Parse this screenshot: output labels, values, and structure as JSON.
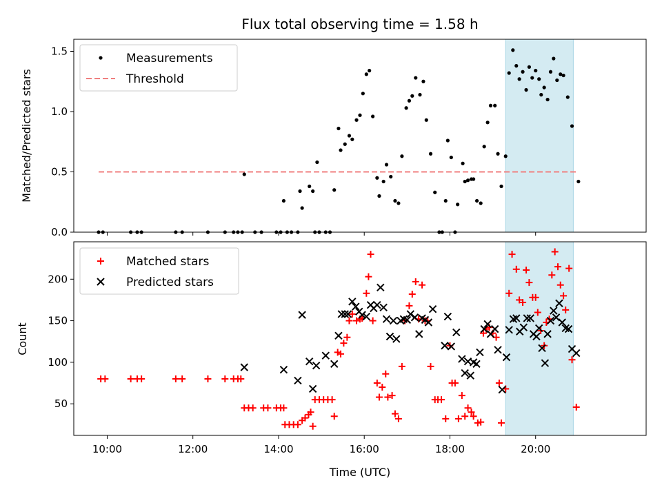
{
  "chart_data": {
    "type": "scatter",
    "title": "Flux total observing time = 1.58 h",
    "xlabel": "Time (UTC)",
    "x_ticks": [
      "10:00",
      "12:00",
      "14:00",
      "16:00",
      "18:00",
      "20:00"
    ],
    "x_tick_hours": [
      10,
      12,
      14,
      16,
      18,
      20
    ],
    "xlim_hours": [
      9.22,
      22.58
    ],
    "highlight_span_hours": [
      19.3,
      20.88
    ],
    "highlight_color": "#d4ebf2",
    "top_panel": {
      "ylabel": "Matched/Predicted stars",
      "ylim": [
        0,
        1.6
      ],
      "y_ticks": [
        0.0,
        0.5,
        1.0,
        1.5
      ],
      "y_tick_labels": [
        "0.0",
        "0.5",
        "1.0",
        "1.5"
      ],
      "legend": [
        {
          "label": "Measurements",
          "marker": "dot",
          "color": "#000000"
        },
        {
          "label": "Threshold",
          "marker": "dashed-line",
          "color": "#f08080"
        }
      ],
      "threshold": {
        "value": 0.5,
        "x_range_hours": [
          9.8,
          21.0
        ],
        "color": "#f08080"
      },
      "measurements": [
        [
          9.8,
          0
        ],
        [
          9.9,
          0
        ],
        [
          10.55,
          0
        ],
        [
          10.7,
          0
        ],
        [
          10.8,
          0
        ],
        [
          11.6,
          0
        ],
        [
          11.75,
          0
        ],
        [
          12.35,
          0
        ],
        [
          12.75,
          0
        ],
        [
          12.95,
          0
        ],
        [
          13.05,
          0
        ],
        [
          13.15,
          0
        ],
        [
          13.45,
          0
        ],
        [
          13.6,
          0
        ],
        [
          13.95,
          0
        ],
        [
          14.05,
          0
        ],
        [
          14.2,
          0
        ],
        [
          14.3,
          0
        ],
        [
          14.45,
          0
        ],
        [
          14.85,
          0
        ],
        [
          14.95,
          0
        ],
        [
          15.1,
          0
        ],
        [
          15.2,
          0
        ],
        [
          13.2,
          0.48
        ],
        [
          14.12,
          0.26
        ],
        [
          14.5,
          0.34
        ],
        [
          14.55,
          0.2
        ],
        [
          14.72,
          0.38
        ],
        [
          14.8,
          0.34
        ],
        [
          14.9,
          0.58
        ],
        [
          15.3,
          0.35
        ],
        [
          15.4,
          0.86
        ],
        [
          15.45,
          0.68
        ],
        [
          15.55,
          0.73
        ],
        [
          15.65,
          0.8
        ],
        [
          15.72,
          0.77
        ],
        [
          15.82,
          0.93
        ],
        [
          15.9,
          0.97
        ],
        [
          15.97,
          1.15
        ],
        [
          16.05,
          1.31
        ],
        [
          16.12,
          1.34
        ],
        [
          16.2,
          0.96
        ],
        [
          16.3,
          0.45
        ],
        [
          16.35,
          0.3
        ],
        [
          16.45,
          0.42
        ],
        [
          16.52,
          0.56
        ],
        [
          16.62,
          0.46
        ],
        [
          16.72,
          0.26
        ],
        [
          16.8,
          0.24
        ],
        [
          16.88,
          0.63
        ],
        [
          16.98,
          1.03
        ],
        [
          17.05,
          1.09
        ],
        [
          17.12,
          1.13
        ],
        [
          17.2,
          1.28
        ],
        [
          17.3,
          1.14
        ],
        [
          17.38,
          1.25
        ],
        [
          17.45,
          0.93
        ],
        [
          17.55,
          0.65
        ],
        [
          17.65,
          0.33
        ],
        [
          17.75,
          0.0
        ],
        [
          17.82,
          0.0
        ],
        [
          17.9,
          0.26
        ],
        [
          17.95,
          0.76
        ],
        [
          18.03,
          0.62
        ],
        [
          18.12,
          0.0
        ],
        [
          18.18,
          0.23
        ],
        [
          18.3,
          0.57
        ],
        [
          18.35,
          0.42
        ],
        [
          18.42,
          0.43
        ],
        [
          18.5,
          0.44
        ],
        [
          18.55,
          0.44
        ],
        [
          18.63,
          0.26
        ],
        [
          18.72,
          0.24
        ],
        [
          18.8,
          0.71
        ],
        [
          18.88,
          0.91
        ],
        [
          18.95,
          1.05
        ],
        [
          19.05,
          1.05
        ],
        [
          19.12,
          0.65
        ],
        [
          19.2,
          0.38
        ],
        [
          19.3,
          0.63
        ],
        [
          19.38,
          1.32
        ],
        [
          19.47,
          1.51
        ],
        [
          19.55,
          1.38
        ],
        [
          19.62,
          1.27
        ],
        [
          19.7,
          1.33
        ],
        [
          19.78,
          1.18
        ],
        [
          19.85,
          1.37
        ],
        [
          19.92,
          1.28
        ],
        [
          20.0,
          1.34
        ],
        [
          20.08,
          1.27
        ],
        [
          20.13,
          1.14
        ],
        [
          20.2,
          1.2
        ],
        [
          20.28,
          1.1
        ],
        [
          20.35,
          1.33
        ],
        [
          20.42,
          1.44
        ],
        [
          20.5,
          1.26
        ],
        [
          20.58,
          1.31
        ],
        [
          20.65,
          1.3
        ],
        [
          20.75,
          1.12
        ],
        [
          20.85,
          0.88
        ],
        [
          21.0,
          0.42
        ]
      ]
    },
    "bottom_panel": {
      "ylabel": "Count",
      "ylim": [
        12,
        245
      ],
      "y_ticks": [
        50,
        100,
        150,
        200
      ],
      "y_tick_labels": [
        "50",
        "100",
        "150",
        "200"
      ],
      "legend": [
        {
          "label": "Matched stars",
          "marker": "plus",
          "color": "#ff0000"
        },
        {
          "label": "Predicted stars",
          "marker": "cross",
          "color": "#000000"
        }
      ],
      "matched_stars": [
        [
          9.85,
          80
        ],
        [
          9.95,
          80
        ],
        [
          10.55,
          80
        ],
        [
          10.7,
          80
        ],
        [
          10.8,
          80
        ],
        [
          11.6,
          80
        ],
        [
          11.75,
          80
        ],
        [
          12.35,
          80
        ],
        [
          12.75,
          80
        ],
        [
          12.95,
          80
        ],
        [
          13.05,
          80
        ],
        [
          13.12,
          80
        ],
        [
          13.2,
          45
        ],
        [
          13.3,
          45
        ],
        [
          13.4,
          45
        ],
        [
          13.65,
          45
        ],
        [
          13.75,
          45
        ],
        [
          13.95,
          45
        ],
        [
          14.05,
          45
        ],
        [
          14.12,
          45
        ],
        [
          14.15,
          25
        ],
        [
          14.25,
          25
        ],
        [
          14.35,
          25
        ],
        [
          14.45,
          25
        ],
        [
          14.55,
          30
        ],
        [
          14.62,
          33
        ],
        [
          14.7,
          37
        ],
        [
          14.75,
          40
        ],
        [
          14.8,
          23
        ],
        [
          14.85,
          55
        ],
        [
          14.95,
          55
        ],
        [
          15.05,
          55
        ],
        [
          15.15,
          55
        ],
        [
          15.25,
          55
        ],
        [
          15.3,
          35
        ],
        [
          15.38,
          112
        ],
        [
          15.45,
          110
        ],
        [
          15.52,
          123
        ],
        [
          15.6,
          130
        ],
        [
          15.65,
          150
        ],
        [
          15.72,
          158
        ],
        [
          15.82,
          150
        ],
        [
          15.9,
          152
        ],
        [
          15.95,
          153
        ],
        [
          16.05,
          183
        ],
        [
          16.1,
          203
        ],
        [
          16.15,
          230
        ],
        [
          16.2,
          150
        ],
        [
          16.3,
          75
        ],
        [
          16.35,
          58
        ],
        [
          16.42,
          70
        ],
        [
          16.5,
          86
        ],
        [
          16.55,
          58
        ],
        [
          16.65,
          60
        ],
        [
          16.72,
          38
        ],
        [
          16.8,
          32
        ],
        [
          16.88,
          95
        ],
        [
          16.95,
          150
        ],
        [
          17.05,
          168
        ],
        [
          17.12,
          182
        ],
        [
          17.2,
          197
        ],
        [
          17.27,
          152
        ],
        [
          17.35,
          193
        ],
        [
          17.42,
          150
        ],
        [
          17.48,
          150
        ],
        [
          17.55,
          95
        ],
        [
          17.65,
          55
        ],
        [
          17.72,
          55
        ],
        [
          17.8,
          55
        ],
        [
          17.9,
          32
        ],
        [
          18.0,
          120
        ],
        [
          18.05,
          75
        ],
        [
          18.12,
          75
        ],
        [
          18.2,
          32
        ],
        [
          18.28,
          60
        ],
        [
          18.35,
          35
        ],
        [
          18.42,
          45
        ],
        [
          18.5,
          40
        ],
        [
          18.55,
          35
        ],
        [
          18.65,
          27
        ],
        [
          18.72,
          28
        ],
        [
          18.78,
          135
        ],
        [
          18.85,
          140
        ],
        [
          18.92,
          142
        ],
        [
          19.0,
          135
        ],
        [
          19.08,
          130
        ],
        [
          19.15,
          75
        ],
        [
          19.2,
          27
        ],
        [
          19.3,
          68
        ],
        [
          19.38,
          183
        ],
        [
          19.45,
          230
        ],
        [
          19.55,
          212
        ],
        [
          19.62,
          175
        ],
        [
          19.7,
          172
        ],
        [
          19.78,
          211
        ],
        [
          19.85,
          196
        ],
        [
          19.93,
          178
        ],
        [
          20.0,
          178
        ],
        [
          20.05,
          160
        ],
        [
          20.12,
          138
        ],
        [
          20.2,
          120
        ],
        [
          20.25,
          148
        ],
        [
          20.32,
          152
        ],
        [
          20.38,
          205
        ],
        [
          20.45,
          233
        ],
        [
          20.52,
          215
        ],
        [
          20.58,
          193
        ],
        [
          20.65,
          180
        ],
        [
          20.7,
          163
        ],
        [
          20.78,
          213
        ],
        [
          20.85,
          103
        ],
        [
          20.95,
          46
        ]
      ],
      "predicted_stars": [
        [
          13.2,
          94
        ],
        [
          14.12,
          91
        ],
        [
          14.45,
          78
        ],
        [
          14.55,
          157
        ],
        [
          14.72,
          101
        ],
        [
          14.8,
          68
        ],
        [
          14.88,
          96
        ],
        [
          15.1,
          108
        ],
        [
          15.3,
          98
        ],
        [
          15.4,
          132
        ],
        [
          15.47,
          158
        ],
        [
          15.55,
          158
        ],
        [
          15.62,
          158
        ],
        [
          15.72,
          173
        ],
        [
          15.8,
          167
        ],
        [
          15.88,
          161
        ],
        [
          15.95,
          157
        ],
        [
          16.05,
          155
        ],
        [
          16.15,
          169
        ],
        [
          16.22,
          165
        ],
        [
          16.3,
          169
        ],
        [
          16.38,
          190
        ],
        [
          16.45,
          166
        ],
        [
          16.52,
          152
        ],
        [
          16.6,
          131
        ],
        [
          16.68,
          150
        ],
        [
          16.75,
          128
        ],
        [
          16.85,
          150
        ],
        [
          16.92,
          152
        ],
        [
          17.0,
          151
        ],
        [
          17.08,
          158
        ],
        [
          17.18,
          154
        ],
        [
          17.28,
          134
        ],
        [
          17.35,
          153
        ],
        [
          17.42,
          151
        ],
        [
          17.5,
          148
        ],
        [
          17.6,
          164
        ],
        [
          17.88,
          120
        ],
        [
          17.95,
          155
        ],
        [
          18.03,
          119
        ],
        [
          18.15,
          136
        ],
        [
          18.28,
          104
        ],
        [
          18.35,
          87
        ],
        [
          18.42,
          101
        ],
        [
          18.48,
          84
        ],
        [
          18.55,
          100
        ],
        [
          18.62,
          98
        ],
        [
          18.7,
          112
        ],
        [
          18.8,
          140
        ],
        [
          18.88,
          146
        ],
        [
          18.95,
          134
        ],
        [
          19.05,
          140
        ],
        [
          19.12,
          115
        ],
        [
          19.22,
          67
        ],
        [
          19.32,
          106
        ],
        [
          19.38,
          139
        ],
        [
          19.48,
          152
        ],
        [
          19.55,
          153
        ],
        [
          19.63,
          137
        ],
        [
          19.72,
          142
        ],
        [
          19.8,
          153
        ],
        [
          19.88,
          153
        ],
        [
          19.95,
          134
        ],
        [
          20.02,
          131
        ],
        [
          20.08,
          141
        ],
        [
          20.15,
          117
        ],
        [
          20.22,
          99
        ],
        [
          20.28,
          134
        ],
        [
          20.35,
          150
        ],
        [
          20.42,
          162
        ],
        [
          20.48,
          154
        ],
        [
          20.55,
          171
        ],
        [
          20.62,
          148
        ],
        [
          20.7,
          141
        ],
        [
          20.77,
          140
        ],
        [
          20.85,
          116
        ],
        [
          20.95,
          111
        ]
      ]
    }
  }
}
